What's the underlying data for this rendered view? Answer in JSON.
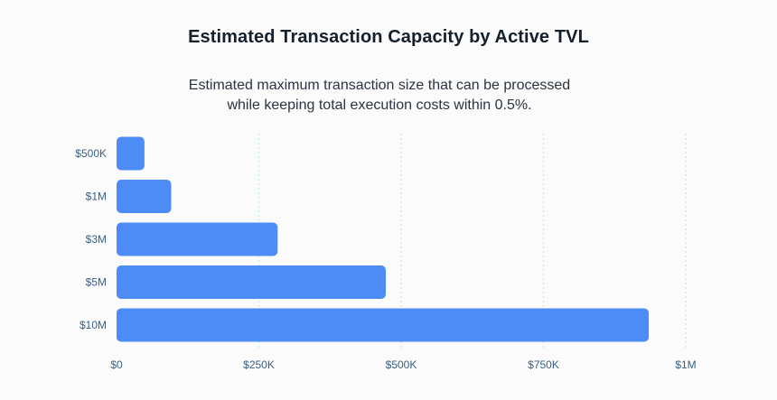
{
  "chart_data": {
    "type": "bar",
    "orientation": "horizontal",
    "title": "Estimated Transaction Capacity by Active TVL",
    "subtitle_lines": [
      "Estimated maximum transaction size that can be processed",
      "while keeping total execution costs within 0.5%."
    ],
    "categories": [
      "$500K",
      "$1M",
      "$3M",
      "$5M",
      "$10M"
    ],
    "values": [
      49000,
      96000,
      283000,
      473000,
      935000
    ],
    "xlim": [
      0,
      1000000
    ],
    "xticks": [
      {
        "value": 0,
        "label": "$0"
      },
      {
        "value": 250000,
        "label": "$250K"
      },
      {
        "value": 500000,
        "label": "$500K"
      },
      {
        "value": 750000,
        "label": "$750K"
      },
      {
        "value": 1000000,
        "label": "$1M"
      }
    ],
    "xlabel": "",
    "ylabel": "",
    "grid": "vertical dotted",
    "legend": "none",
    "bar_color": "#4d8cf5",
    "grid_color": "#c9e6ec",
    "tick_color": "#3a5f85"
  }
}
